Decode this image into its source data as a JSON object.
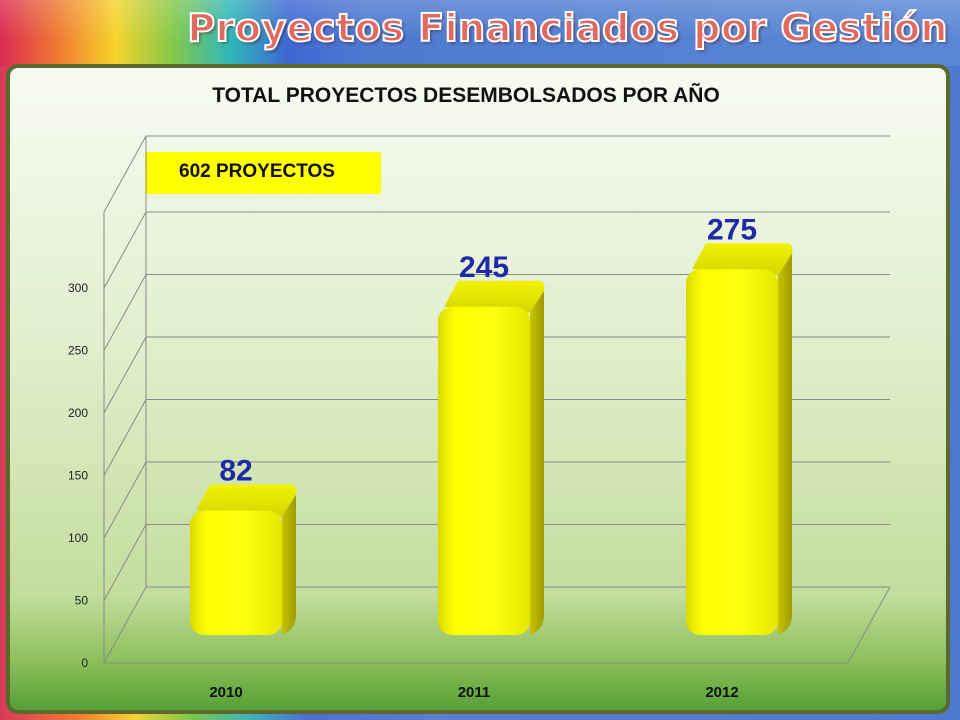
{
  "header": {
    "title": "Proyectos Financiados por Gestión"
  },
  "summary": {
    "total_label": "602 PROYECTOS"
  },
  "colors": {
    "bar": "#ffff00",
    "label": "#1f2aa8",
    "title": "#e06a5f"
  },
  "chart_data": {
    "type": "bar",
    "title": "TOTAL PROYECTOS DESEMBOLSADOS POR AÑO",
    "categories": [
      "2010",
      "2011",
      "2012"
    ],
    "values": [
      82,
      245,
      275
    ],
    "ylim": [
      0,
      300
    ],
    "yticks": [
      0,
      50,
      100,
      150,
      200,
      250,
      300
    ],
    "grid": true,
    "three_d": true
  }
}
